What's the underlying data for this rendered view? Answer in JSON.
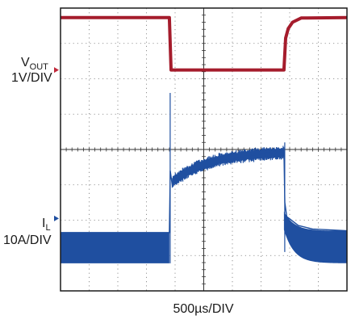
{
  "chart_data": {
    "type": "line",
    "title": "",
    "xlabel": "500µs/DIV",
    "x_divisions": 10,
    "y_divisions": 8,
    "grid": true,
    "colors": {
      "vout": "#a51c2c",
      "il": "#1f4fa0",
      "grid": "#777777",
      "frame": "#1a1a1a",
      "marker": "#c0283a",
      "il_marker": "#1f4fa0"
    },
    "channels": [
      {
        "id": "vout",
        "label_main": "V",
        "label_sub": "OUT",
        "scale_label": "1V/DIV",
        "ground_marker_div": 6.25,
        "trace_divs": [
          [
            0,
            7.73
          ],
          [
            3.8,
            7.73
          ],
          [
            3.86,
            6.25
          ],
          [
            5.3,
            6.25
          ],
          [
            7.8,
            6.25
          ],
          [
            7.86,
            7.15
          ],
          [
            7.95,
            7.42
          ],
          [
            8.1,
            7.6
          ],
          [
            8.4,
            7.72
          ],
          [
            10,
            7.73
          ]
        ]
      },
      {
        "id": "il",
        "label_main": "I",
        "label_sub": "L",
        "scale_label": "10A/DIV",
        "ground_marker_div": 2.05,
        "steady_low_div": 1.65,
        "ripple_low_div": 0.78,
        "transient_step_divs": [
          3.8,
          7.8
        ],
        "trace_divs": [
          [
            0,
            1.65
          ],
          [
            3.8,
            1.65
          ],
          [
            3.83,
            3.4
          ],
          [
            3.9,
            3.0
          ],
          [
            4.3,
            3.25
          ],
          [
            5.0,
            3.5
          ],
          [
            6.0,
            3.75
          ],
          [
            7.0,
            3.88
          ],
          [
            7.8,
            3.95
          ],
          [
            7.83,
            2.5
          ],
          [
            7.9,
            2.1
          ],
          [
            8.3,
            1.85
          ],
          [
            8.8,
            1.75
          ],
          [
            10,
            1.7
          ]
        ]
      }
    ]
  }
}
